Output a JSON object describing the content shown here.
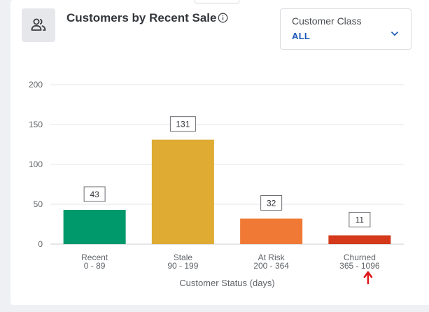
{
  "header": {
    "title": "Customers by Recent Sale",
    "icon": "customers-group-icon",
    "info_icon": "info-circle-icon"
  },
  "filter": {
    "label": "Customer Class",
    "value": "ALL",
    "icon": "chevron-down-icon"
  },
  "chart_data": {
    "type": "bar",
    "categories": [
      "Recent",
      "Stale",
      "At Risk",
      "Churned"
    ],
    "category_ranges": [
      "0 - 89",
      "90 - 199",
      "200 - 364",
      "365 - 1096"
    ],
    "values": [
      43,
      131,
      32,
      11
    ],
    "colors": [
      "#00996b",
      "#dfab33",
      "#f07a35",
      "#d3391a"
    ],
    "xlabel": "Customer Status (days)",
    "ylabel": "",
    "ylim": [
      0,
      200
    ],
    "yticks": [
      0,
      50,
      100,
      150,
      200
    ],
    "grid": true,
    "data_labels": true,
    "annotation": {
      "type": "arrow",
      "color": "#e0181b",
      "direction": "up",
      "target": "Churned"
    }
  }
}
